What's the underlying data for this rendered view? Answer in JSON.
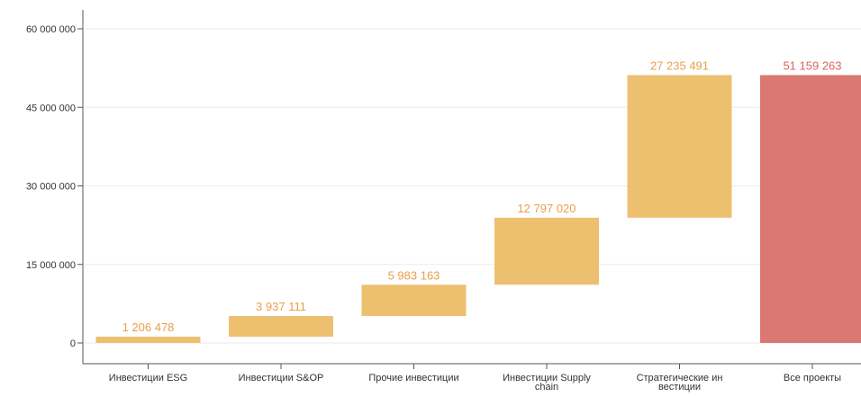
{
  "chart_data": {
    "type": "bar",
    "subtype": "waterfall",
    "categories": [
      [
        "Инвестиции ESG"
      ],
      [
        "Инвестиции S&OP"
      ],
      [
        "Прочие инвестиции"
      ],
      [
        "Инвестиции Supply",
        "chain"
      ],
      [
        "Стратегические ин",
        "вестиции"
      ],
      [
        "Все проекты"
      ]
    ],
    "values": [
      1206478,
      3937111,
      5983163,
      12797020,
      27235491,
      51159263
    ],
    "value_labels": [
      "1 206 478",
      "3 937 111",
      "5 983 163",
      "12 797 020",
      "27 235 491",
      "51 159 263"
    ],
    "is_total": [
      false,
      false,
      false,
      false,
      false,
      true
    ],
    "ylim": [
      0,
      63000000
    ],
    "yticks": [
      0,
      15000000,
      30000000,
      45000000,
      60000000
    ],
    "ytick_labels": [
      "0",
      "15 000 000",
      "30 000 000",
      "45 000 000",
      "60 000 000"
    ],
    "grid": true,
    "colors": {
      "increase": "#EDC070",
      "total": "#DB7872",
      "increase_label": "#E8A04A",
      "total_label": "#D9645D",
      "axis": "#555555",
      "grid": "#EBEBEB"
    }
  }
}
